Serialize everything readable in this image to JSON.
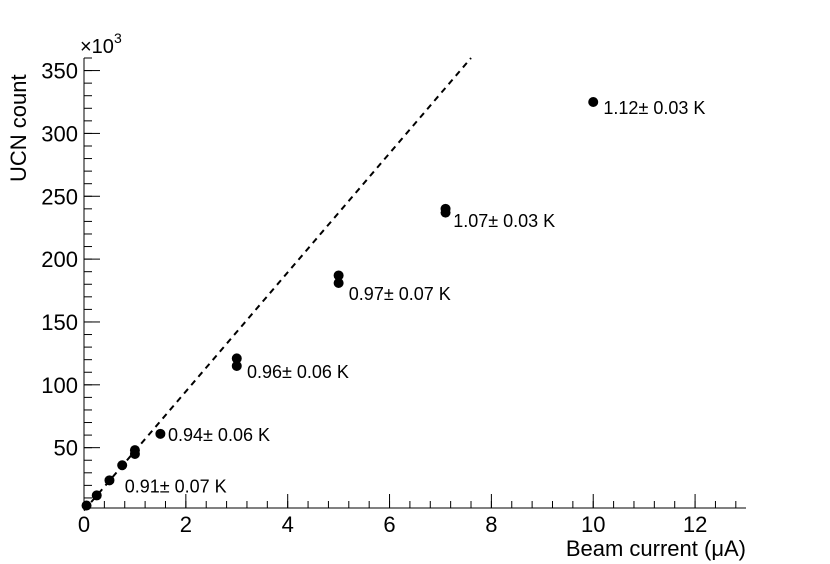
{
  "chart_data": {
    "type": "scatter",
    "xlabel": "Beam current (μA)",
    "ylabel": "UCN count",
    "y_multiplier_label": "×10",
    "y_multiplier_exp": "3",
    "xlim": [
      0,
      13
    ],
    "ylim": [
      2,
      360
    ],
    "x_ticks": [
      0,
      2,
      4,
      6,
      8,
      10,
      12
    ],
    "y_ticks": [
      50,
      100,
      150,
      200,
      250,
      300,
      350
    ],
    "x_minor_step": 0.4,
    "y_minor_step": 10,
    "series": [
      {
        "marker": "circle",
        "x": [
          0.05,
          0.25,
          0.5,
          0.75,
          1.0,
          1.0,
          1.5,
          3.0,
          3.0,
          5.0,
          5.0,
          7.1,
          7.1,
          10.0
        ],
        "y": [
          4,
          12,
          24,
          36,
          45,
          48,
          61,
          115,
          121,
          181,
          187,
          237,
          240,
          325
        ]
      }
    ],
    "fit_line": {
      "style": "dashed",
      "x": [
        0,
        7.6
      ],
      "y": [
        0,
        360
      ]
    },
    "annotations": [
      {
        "text": "0.91± 0.07 K",
        "x": 0.8,
        "y": 20
      },
      {
        "text": "0.94± 0.06 K",
        "x": 1.65,
        "y": 61
      },
      {
        "text": "0.96± 0.06 K",
        "x": 3.2,
        "y": 111
      },
      {
        "text": "0.97± 0.07 K",
        "x": 5.2,
        "y": 173
      },
      {
        "text": "1.07± 0.03 K",
        "x": 7.25,
        "y": 231
      },
      {
        "text": "1.12± 0.03 K",
        "x": 10.2,
        "y": 321
      }
    ],
    "grid": false,
    "legend": "none"
  }
}
